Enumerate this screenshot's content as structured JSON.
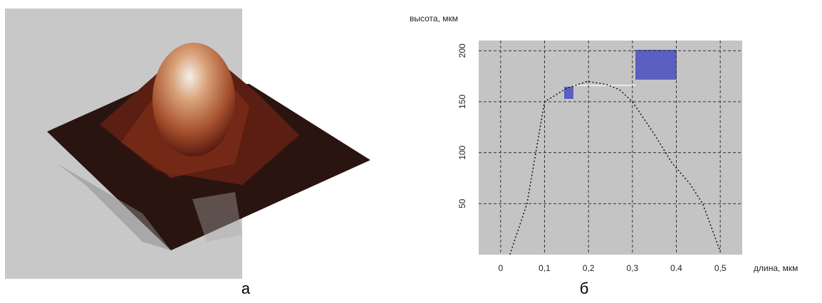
{
  "chart_data": {
    "type": "line",
    "y_label": "высота, мкм",
    "x_label": "длина, мкм",
    "x": [
      0.021,
      0.06,
      0.1,
      0.15,
      0.198,
      0.24,
      0.27,
      0.3,
      0.35,
      0.39,
      0.43,
      0.46,
      0.5
    ],
    "series": [
      {
        "color": "#111111",
        "values": [
          0,
          50,
          150,
          163,
          170,
          167,
          162,
          150,
          118,
          90,
          70,
          50,
          3
        ]
      }
    ],
    "xlim": [
      -0.05,
      0.55
    ],
    "ylim": [
      0,
      210
    ],
    "xticks": [
      {
        "value": 0,
        "label": "0"
      },
      {
        "value": 0.1,
        "label": "0,1"
      },
      {
        "value": 0.2,
        "label": "0,2"
      },
      {
        "value": 0.3,
        "label": "0,3"
      },
      {
        "value": 0.4,
        "label": "0.4"
      },
      {
        "value": 0.5,
        "label": "0,5"
      }
    ],
    "yticks": [
      50,
      100,
      150,
      200
    ],
    "grid": true
  },
  "captions": [
    "а",
    "б"
  ]
}
